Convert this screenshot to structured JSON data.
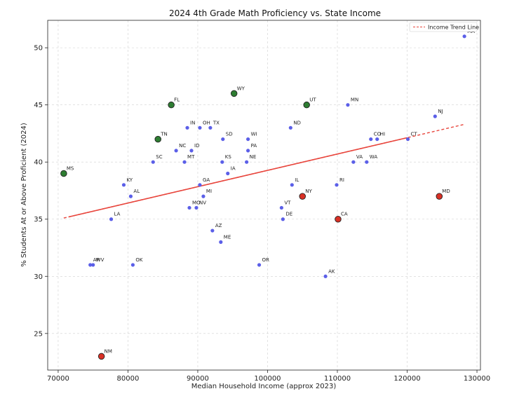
{
  "chart_data": {
    "type": "scatter",
    "title": "2024 4th Grade Math Proficiency vs. State Income",
    "xlabel": "Median Household Income (approx 2023)",
    "ylabel": "% Students At or Above Proficient (2024)",
    "xlim": [
      68500,
      130500
    ],
    "ylim": [
      21.8,
      52.4
    ],
    "xticks": [
      70000,
      80000,
      90000,
      100000,
      110000,
      120000,
      130000
    ],
    "yticks": [
      25,
      30,
      35,
      40,
      45,
      50
    ],
    "grid": true,
    "legend": {
      "position": "top-right",
      "entries": [
        "Income Trend Line"
      ]
    },
    "trend_line": {
      "name": "Income Trend Line",
      "x": [
        70800,
        128200
      ],
      "y": [
        35.1,
        43.3
      ],
      "color": "#e8453c"
    },
    "colors": {
      "normal": "#5b5fe8",
      "over": "#2e7d32",
      "under": "#d93025",
      "edge": "#222222"
    },
    "points": [
      {
        "label": "MS",
        "x": 70800,
        "y": 39,
        "group": "over"
      },
      {
        "label": "NM",
        "x": 76200,
        "y": 23,
        "group": "under"
      },
      {
        "label": "AR",
        "x": 74600,
        "y": 31,
        "group": "normal"
      },
      {
        "label": "WV",
        "x": 75000,
        "y": 31,
        "group": "normal"
      },
      {
        "label": "LA",
        "x": 77600,
        "y": 35,
        "group": "normal"
      },
      {
        "label": "KY",
        "x": 79400,
        "y": 38,
        "group": "normal"
      },
      {
        "label": "AL",
        "x": 80400,
        "y": 37,
        "group": "normal"
      },
      {
        "label": "OK",
        "x": 80700,
        "y": 31,
        "group": "normal"
      },
      {
        "label": "SC",
        "x": 83600,
        "y": 40,
        "group": "normal"
      },
      {
        "label": "TN",
        "x": 84300,
        "y": 42,
        "group": "over"
      },
      {
        "label": "FL",
        "x": 86200,
        "y": 45,
        "group": "over"
      },
      {
        "label": "NC",
        "x": 86900,
        "y": 41,
        "group": "normal"
      },
      {
        "label": "MT",
        "x": 88100,
        "y": 40,
        "group": "normal"
      },
      {
        "label": "IN",
        "x": 88500,
        "y": 43,
        "group": "normal"
      },
      {
        "label": "MO",
        "x": 88800,
        "y": 36,
        "group": "normal"
      },
      {
        "label": "ID",
        "x": 89100,
        "y": 41,
        "group": "normal"
      },
      {
        "label": "NV",
        "x": 89800,
        "y": 36,
        "group": "normal"
      },
      {
        "label": "GA",
        "x": 90300,
        "y": 38,
        "group": "normal"
      },
      {
        "label": "OH",
        "x": 90300,
        "y": 43,
        "group": "normal"
      },
      {
        "label": "MI",
        "x": 90800,
        "y": 37,
        "group": "normal"
      },
      {
        "label": "TX",
        "x": 91800,
        "y": 43,
        "group": "normal"
      },
      {
        "label": "AZ",
        "x": 92100,
        "y": 34,
        "group": "normal"
      },
      {
        "label": "ME",
        "x": 93300,
        "y": 33,
        "group": "normal"
      },
      {
        "label": "KS",
        "x": 93500,
        "y": 40,
        "group": "normal"
      },
      {
        "label": "SD",
        "x": 93600,
        "y": 42,
        "group": "normal"
      },
      {
        "label": "IA",
        "x": 94300,
        "y": 39,
        "group": "normal"
      },
      {
        "label": "WY",
        "x": 95200,
        "y": 46,
        "group": "over"
      },
      {
        "label": "NE",
        "x": 97000,
        "y": 40,
        "group": "normal"
      },
      {
        "label": "PA",
        "x": 97200,
        "y": 41,
        "group": "normal"
      },
      {
        "label": "WI",
        "x": 97200,
        "y": 42,
        "group": "normal"
      },
      {
        "label": "OR",
        "x": 98800,
        "y": 31,
        "group": "normal"
      },
      {
        "label": "VT",
        "x": 102000,
        "y": 36,
        "group": "normal"
      },
      {
        "label": "DE",
        "x": 102200,
        "y": 35,
        "group": "normal"
      },
      {
        "label": "ND",
        "x": 103300,
        "y": 43,
        "group": "normal"
      },
      {
        "label": "IL",
        "x": 103500,
        "y": 38,
        "group": "normal"
      },
      {
        "label": "NY",
        "x": 105000,
        "y": 37,
        "group": "under"
      },
      {
        "label": "UT",
        "x": 105600,
        "y": 45,
        "group": "over"
      },
      {
        "label": "AK",
        "x": 108300,
        "y": 30,
        "group": "normal"
      },
      {
        "label": "RI",
        "x": 109900,
        "y": 38,
        "group": "normal"
      },
      {
        "label": "CA",
        "x": 110100,
        "y": 35,
        "group": "under"
      },
      {
        "label": "MN",
        "x": 111500,
        "y": 45,
        "group": "normal"
      },
      {
        "label": "VA",
        "x": 112300,
        "y": 40,
        "group": "normal"
      },
      {
        "label": "WA",
        "x": 114200,
        "y": 40,
        "group": "normal"
      },
      {
        "label": "CO",
        "x": 114800,
        "y": 42,
        "group": "normal"
      },
      {
        "label": "HI",
        "x": 115700,
        "y": 42,
        "group": "normal"
      },
      {
        "label": "CT",
        "x": 120100,
        "y": 42,
        "group": "normal"
      },
      {
        "label": "NJ",
        "x": 124000,
        "y": 44,
        "group": "normal"
      },
      {
        "label": "MD",
        "x": 124600,
        "y": 37,
        "group": "under"
      },
      {
        "label": "MA",
        "x": 128200,
        "y": 51,
        "group": "normal"
      }
    ]
  }
}
